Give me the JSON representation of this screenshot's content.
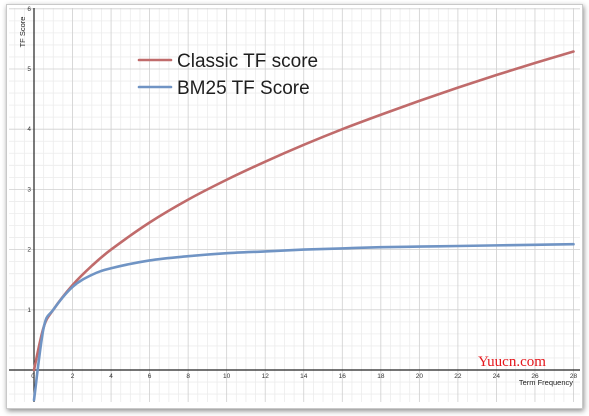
{
  "chart_data": {
    "type": "line",
    "title": "",
    "xlabel": "Term Frequency",
    "ylabel": "TF Score",
    "xlim": [
      0,
      28
    ],
    "ylim": [
      -0.5,
      6
    ],
    "x_ticks": [
      "0",
      "2",
      "4",
      "6",
      "8",
      "10",
      "12",
      "14",
      "16",
      "18",
      "20",
      "22",
      "24",
      "26",
      "28"
    ],
    "y_ticks": [
      "1",
      "2",
      "3",
      "4",
      "5",
      "6"
    ],
    "grid": true,
    "legend_position": "top-left",
    "series": [
      {
        "name": "Classic TF score",
        "color": "#c06b6b",
        "x": [
          0,
          0.5,
          1,
          2,
          3,
          4,
          6,
          8,
          10,
          12,
          14,
          16,
          18,
          20,
          22,
          24,
          26,
          28
        ],
        "y": [
          0,
          0.71,
          1.0,
          1.41,
          1.73,
          2.0,
          2.45,
          2.83,
          3.16,
          3.46,
          3.74,
          4.0,
          4.24,
          4.47,
          4.69,
          4.9,
          5.1,
          5.29
        ]
      },
      {
        "name": "BM25 TF Score",
        "color": "#7094c4",
        "x": [
          0,
          0.5,
          1,
          2,
          3,
          4,
          6,
          8,
          10,
          12,
          14,
          16,
          18,
          20,
          22,
          24,
          26,
          28
        ],
        "y": [
          -0.5,
          0.7,
          1.0,
          1.38,
          1.58,
          1.69,
          1.82,
          1.89,
          1.94,
          1.97,
          2.0,
          2.02,
          2.04,
          2.05,
          2.06,
          2.07,
          2.08,
          2.09
        ]
      }
    ]
  },
  "watermark": "Yuucn.com"
}
